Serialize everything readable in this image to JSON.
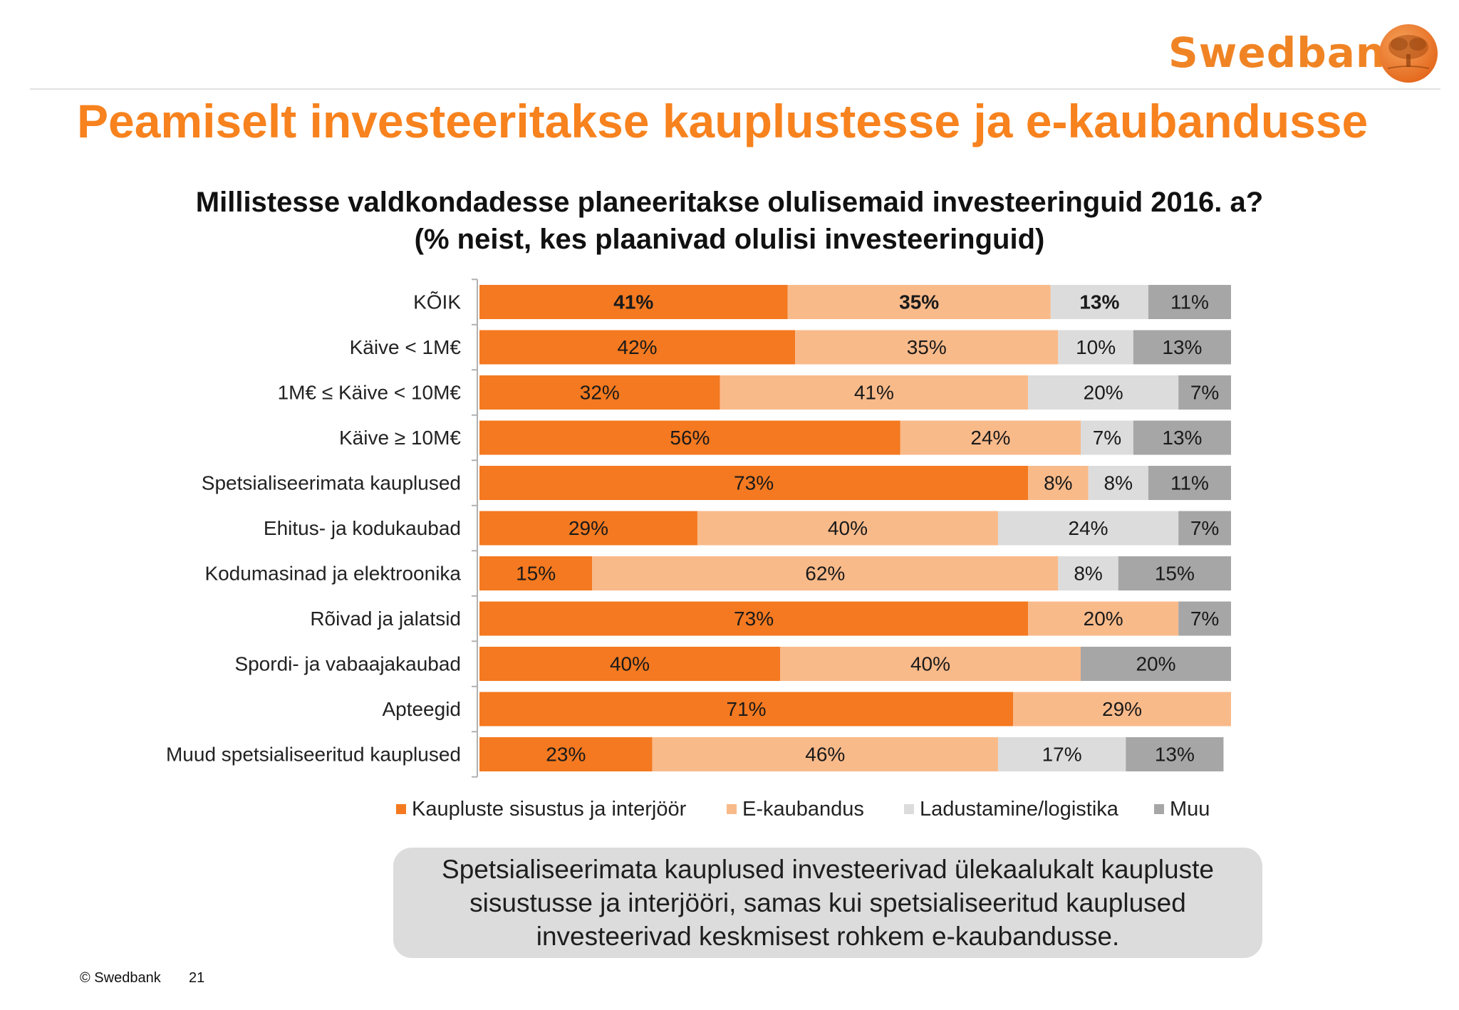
{
  "brand": {
    "name": "Swedbank"
  },
  "headline": "Peamiselt investeeritakse kauplustesse ja e-kaubandusse",
  "note": "Spetsialiseerimata kauplused investeerivad ülekaalukalt kaupluste sisustusse ja interjööri, samas kui spetsialiseeritud kauplused investeerivad keskmisest rohkem e-kaubandusse.",
  "footer": {
    "copyright": "© Swedbank",
    "page": "21"
  },
  "colors": {
    "accent": "#f7821e"
  },
  "chart_data": {
    "type": "bar",
    "orientation": "horizontal",
    "stacked": true,
    "title": "Millistesse valdkondadesse planeeritakse olulisemaid investeeringuid 2016. a?",
    "subtitle": "(% neist, kes plaanivad olulisi investeeringuid)",
    "unit": "%",
    "xlim": [
      0,
      100
    ],
    "legend_position": "bottom",
    "grid": false,
    "categories": [
      "KÕIK",
      "Käive < 1M€",
      "1M€ ≤ Käive < 10M€",
      "Käive ≥ 10M€",
      "Spetsialiseerimata kauplused",
      "Ehitus- ja kodukaubad",
      "Kodumasinad ja elektroonika",
      "Rõivad ja jalatsid",
      "Spordi- ja vabaajakaubad",
      "Apteegid",
      "Muud spetsialiseeritud kauplused"
    ],
    "series": [
      {
        "name": "Kaupluste sisustus ja interjöör",
        "color": "#f47920",
        "label_color": "#1a1a1a",
        "values": [
          41,
          42,
          32,
          56,
          73,
          29,
          15,
          73,
          40,
          71,
          23
        ]
      },
      {
        "name": "E-kaubandus",
        "color": "#f9ba8a",
        "label_color": "#1a1a1a",
        "values": [
          35,
          35,
          41,
          24,
          8,
          40,
          62,
          20,
          40,
          29,
          46
        ]
      },
      {
        "name": "Ladustamine/logistika",
        "color": "#dcdcdc",
        "label_color": "#1a1a1a",
        "values": [
          13,
          10,
          20,
          7,
          8,
          24,
          8,
          0,
          0,
          0,
          17
        ]
      },
      {
        "name": "Muu",
        "color": "#a6a6a6",
        "label_color": "#1a1a1a",
        "values": [
          11,
          13,
          7,
          13,
          11,
          7,
          15,
          7,
          20,
          0,
          13
        ]
      }
    ],
    "bold_rows": [
      0
    ]
  }
}
